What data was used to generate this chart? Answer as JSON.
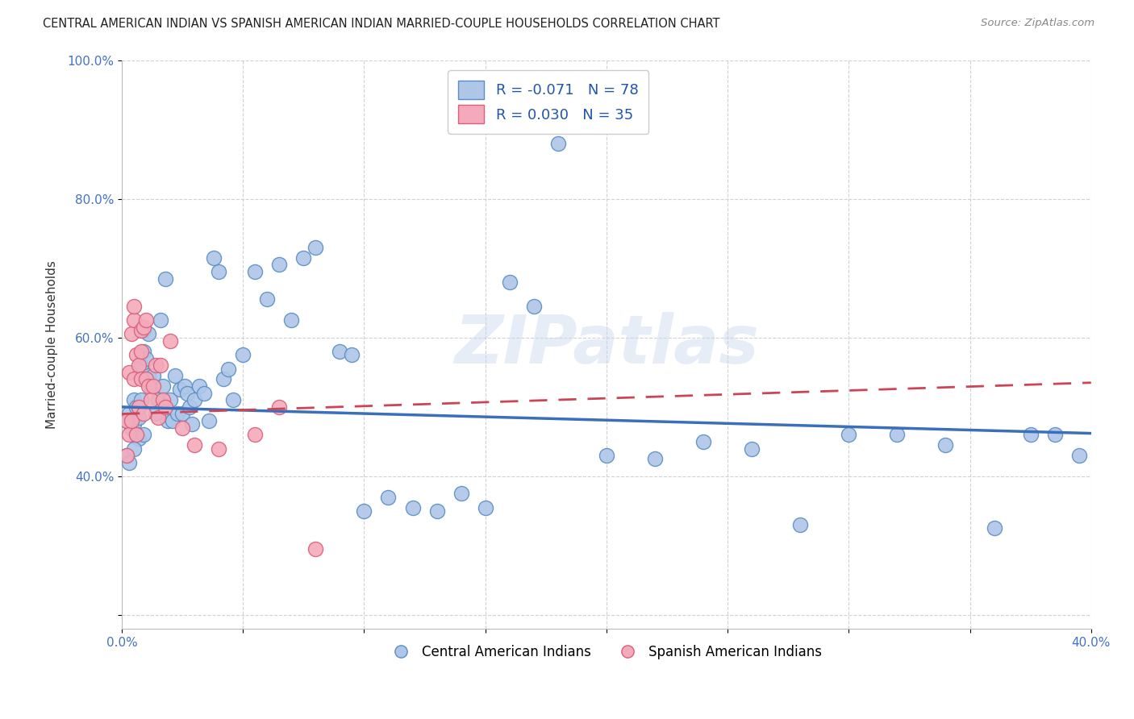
{
  "title": "CENTRAL AMERICAN INDIAN VS SPANISH AMERICAN INDIAN MARRIED-COUPLE HOUSEHOLDS CORRELATION CHART",
  "source": "Source: ZipAtlas.com",
  "ylabel": "Married-couple Households",
  "x_min": 0.0,
  "x_max": 0.4,
  "y_min": 0.18,
  "y_max": 1.0,
  "x_ticks": [
    0.0,
    0.05,
    0.1,
    0.15,
    0.2,
    0.25,
    0.3,
    0.35,
    0.4
  ],
  "y_ticks": [
    0.2,
    0.4,
    0.6,
    0.8,
    1.0
  ],
  "y_tick_labels": [
    "",
    "40.0%",
    "60.0%",
    "80.0%",
    "100.0%"
  ],
  "blue_color": "#aec6e8",
  "pink_color": "#f4aabb",
  "blue_edge_color": "#5b8ec4",
  "pink_edge_color": "#d9607a",
  "blue_line_color": "#3a6fbb",
  "pink_line_color": "#cc4455",
  "legend_R_blue": "-0.071",
  "legend_N_blue": "78",
  "legend_R_pink": "0.030",
  "legend_N_pink": "35",
  "legend_label_blue": "Central American Indians",
  "legend_label_pink": "Spanish American Indians",
  "watermark": "ZIPatlas",
  "blue_trend_x0": 0.0,
  "blue_trend_y0": 0.5,
  "blue_trend_x1": 0.4,
  "blue_trend_y1": 0.462,
  "pink_trend_x0": 0.0,
  "pink_trend_y0": 0.49,
  "pink_trend_x1": 0.4,
  "pink_trend_y1": 0.535,
  "blue_x": [
    0.002,
    0.003,
    0.004,
    0.005,
    0.005,
    0.006,
    0.006,
    0.007,
    0.007,
    0.008,
    0.008,
    0.009,
    0.009,
    0.01,
    0.011,
    0.011,
    0.012,
    0.013,
    0.014,
    0.015,
    0.016,
    0.017,
    0.018,
    0.019,
    0.02,
    0.021,
    0.022,
    0.023,
    0.024,
    0.025,
    0.026,
    0.027,
    0.028,
    0.029,
    0.03,
    0.032,
    0.034,
    0.036,
    0.038,
    0.04,
    0.042,
    0.044,
    0.046,
    0.05,
    0.055,
    0.06,
    0.065,
    0.07,
    0.075,
    0.08,
    0.09,
    0.095,
    0.1,
    0.11,
    0.12,
    0.13,
    0.14,
    0.15,
    0.16,
    0.17,
    0.18,
    0.2,
    0.22,
    0.24,
    0.26,
    0.28,
    0.3,
    0.32,
    0.34,
    0.36,
    0.375,
    0.385,
    0.395,
    0.002,
    0.003,
    0.005,
    0.007,
    0.009
  ],
  "blue_y": [
    0.48,
    0.49,
    0.47,
    0.475,
    0.51,
    0.46,
    0.5,
    0.455,
    0.5,
    0.56,
    0.51,
    0.58,
    0.61,
    0.57,
    0.545,
    0.605,
    0.53,
    0.545,
    0.49,
    0.51,
    0.625,
    0.53,
    0.685,
    0.48,
    0.51,
    0.48,
    0.545,
    0.49,
    0.525,
    0.49,
    0.53,
    0.52,
    0.5,
    0.475,
    0.51,
    0.53,
    0.52,
    0.48,
    0.715,
    0.695,
    0.54,
    0.555,
    0.51,
    0.575,
    0.695,
    0.655,
    0.705,
    0.625,
    0.715,
    0.73,
    0.58,
    0.575,
    0.35,
    0.37,
    0.355,
    0.35,
    0.375,
    0.355,
    0.68,
    0.645,
    0.88,
    0.43,
    0.425,
    0.45,
    0.44,
    0.33,
    0.46,
    0.46,
    0.445,
    0.325,
    0.46,
    0.46,
    0.43,
    0.43,
    0.42,
    0.44,
    0.485,
    0.46
  ],
  "pink_x": [
    0.002,
    0.002,
    0.003,
    0.003,
    0.004,
    0.004,
    0.005,
    0.005,
    0.005,
    0.006,
    0.006,
    0.007,
    0.007,
    0.008,
    0.008,
    0.008,
    0.009,
    0.009,
    0.01,
    0.01,
    0.011,
    0.012,
    0.013,
    0.014,
    0.015,
    0.016,
    0.017,
    0.018,
    0.02,
    0.025,
    0.03,
    0.04,
    0.055,
    0.065,
    0.08
  ],
  "pink_y": [
    0.43,
    0.48,
    0.46,
    0.55,
    0.48,
    0.605,
    0.54,
    0.625,
    0.645,
    0.575,
    0.46,
    0.5,
    0.56,
    0.54,
    0.58,
    0.61,
    0.49,
    0.615,
    0.54,
    0.625,
    0.53,
    0.51,
    0.53,
    0.56,
    0.485,
    0.56,
    0.51,
    0.5,
    0.595,
    0.47,
    0.445,
    0.44,
    0.46,
    0.5,
    0.295
  ]
}
